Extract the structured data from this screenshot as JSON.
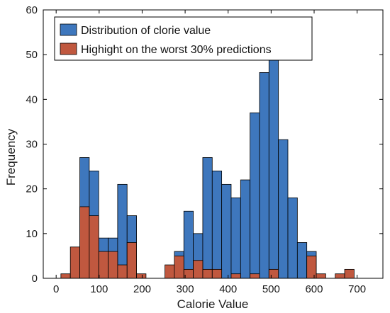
{
  "chart_data": {
    "type": "bar",
    "subtype": "histogram",
    "xlabel": "Calorie Value",
    "ylabel": "Frequency",
    "xlim": [
      -30,
      760
    ],
    "ylim": [
      0,
      60
    ],
    "bin_width": 22,
    "x_ticks": [
      0,
      100,
      200,
      300,
      400,
      500,
      600,
      700
    ],
    "y_ticks": [
      0,
      10,
      20,
      30,
      40,
      50,
      60
    ],
    "grid": false,
    "legend_position": "top-left",
    "series": [
      {
        "name": "Distribution of clorie value",
        "color": "#3e77bd",
        "bins": [
          {
            "x": 55,
            "count": 27
          },
          {
            "x": 77,
            "count": 24
          },
          {
            "x": 99,
            "count": 9
          },
          {
            "x": 121,
            "count": 9
          },
          {
            "x": 143,
            "count": 21
          },
          {
            "x": 165,
            "count": 14
          },
          {
            "x": 275,
            "count": 6
          },
          {
            "x": 297,
            "count": 15
          },
          {
            "x": 319,
            "count": 10
          },
          {
            "x": 341,
            "count": 27
          },
          {
            "x": 363,
            "count": 24
          },
          {
            "x": 385,
            "count": 21
          },
          {
            "x": 407,
            "count": 18
          },
          {
            "x": 429,
            "count": 22
          },
          {
            "x": 451,
            "count": 37
          },
          {
            "x": 473,
            "count": 46
          },
          {
            "x": 495,
            "count": 50
          },
          {
            "x": 517,
            "count": 31
          },
          {
            "x": 539,
            "count": 18
          },
          {
            "x": 561,
            "count": 8
          },
          {
            "x": 583,
            "count": 6
          }
        ]
      },
      {
        "name": "Highight on the worst 30% predictions",
        "color": "#c0583f",
        "bins": [
          {
            "x": 11,
            "count": 1
          },
          {
            "x": 33,
            "count": 7
          },
          {
            "x": 55,
            "count": 16
          },
          {
            "x": 77,
            "count": 14
          },
          {
            "x": 99,
            "count": 6
          },
          {
            "x": 121,
            "count": 6
          },
          {
            "x": 143,
            "count": 3
          },
          {
            "x": 165,
            "count": 8
          },
          {
            "x": 187,
            "count": 1
          },
          {
            "x": 253,
            "count": 3
          },
          {
            "x": 275,
            "count": 5
          },
          {
            "x": 297,
            "count": 2
          },
          {
            "x": 319,
            "count": 4
          },
          {
            "x": 341,
            "count": 2
          },
          {
            "x": 363,
            "count": 2
          },
          {
            "x": 407,
            "count": 1
          },
          {
            "x": 451,
            "count": 1
          },
          {
            "x": 495,
            "count": 2
          },
          {
            "x": 583,
            "count": 5
          },
          {
            "x": 605,
            "count": 1
          },
          {
            "x": 649,
            "count": 1
          },
          {
            "x": 671,
            "count": 2
          }
        ]
      }
    ]
  }
}
